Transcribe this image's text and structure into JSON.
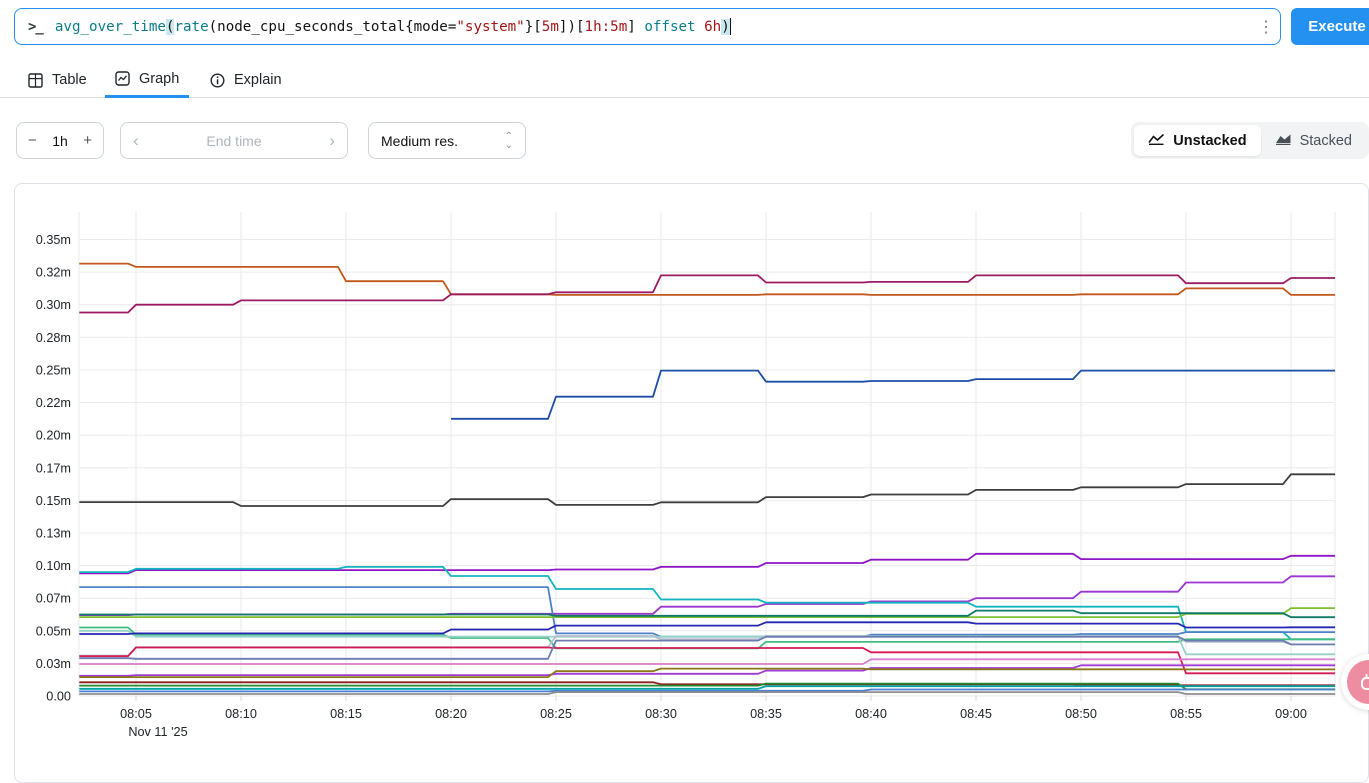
{
  "query_bar": {
    "prompt": ">_",
    "kebab": "⋮",
    "execute_label": "Execute",
    "accent_color": "#2490ef",
    "segments": [
      {
        "text": "avg_over_time",
        "cls": "fn"
      },
      {
        "text": "(",
        "cls": "paren-match"
      },
      {
        "text": "rate",
        "cls": "fn"
      },
      {
        "text": "(",
        "cls": "plain"
      },
      {
        "text": "node_cpu_seconds_total",
        "cls": "metric"
      },
      {
        "text": "{",
        "cls": "plain"
      },
      {
        "text": "mode",
        "cls": "plain"
      },
      {
        "text": "=",
        "cls": "plain"
      },
      {
        "text": "\"system\"",
        "cls": "string"
      },
      {
        "text": "}",
        "cls": "plain"
      },
      {
        "text": "[",
        "cls": "plain"
      },
      {
        "text": "5m",
        "cls": "duration"
      },
      {
        "text": "]",
        "cls": "plain"
      },
      {
        "text": ")",
        "cls": "plain"
      },
      {
        "text": "[",
        "cls": "plain"
      },
      {
        "text": "1h:5m",
        "cls": "duration"
      },
      {
        "text": "]",
        "cls": "plain"
      },
      {
        "text": " ",
        "cls": "plain"
      },
      {
        "text": "offset",
        "cls": "keyword"
      },
      {
        "text": " ",
        "cls": "plain"
      },
      {
        "text": "6h",
        "cls": "duration"
      },
      {
        "text": ")",
        "cls": "paren-match"
      }
    ]
  },
  "tabs": [
    {
      "label": "Table",
      "active": false
    },
    {
      "label": "Graph",
      "active": true
    },
    {
      "label": "Explain",
      "active": false
    }
  ],
  "controls": {
    "duration": {
      "minus": "−",
      "value": "1h",
      "plus": "+"
    },
    "end_time": {
      "placeholder": "End time",
      "prev": "‹",
      "next": "›"
    },
    "resolution": {
      "value": "Medium res."
    },
    "stack_toggle": [
      {
        "label": "Unstacked",
        "active": true
      },
      {
        "label": "Stacked",
        "active": false
      }
    ]
  },
  "floating_button": {
    "color": "#ee8ca2"
  },
  "chart_data": {
    "type": "line",
    "grid": true,
    "legend": "none",
    "ylim": [
      0,
      0.37
    ],
    "y_unit": "m",
    "date_label": "Nov 11 '25",
    "y_ticks": [
      {
        "v": 0.35,
        "label": "0.35m"
      },
      {
        "v": 0.325,
        "label": "0.32m"
      },
      {
        "v": 0.3,
        "label": "0.30m"
      },
      {
        "v": 0.275,
        "label": "0.28m"
      },
      {
        "v": 0.25,
        "label": "0.25m"
      },
      {
        "v": 0.225,
        "label": "0.22m"
      },
      {
        "v": 0.2,
        "label": "0.20m"
      },
      {
        "v": 0.175,
        "label": "0.17m"
      },
      {
        "v": 0.15,
        "label": "0.15m"
      },
      {
        "v": 0.125,
        "label": "0.13m"
      },
      {
        "v": 0.1,
        "label": "0.10m"
      },
      {
        "v": 0.075,
        "label": "0.07m"
      },
      {
        "v": 0.05,
        "label": "0.05m"
      },
      {
        "v": 0.025,
        "label": "0.03m"
      },
      {
        "v": 0.0,
        "label": "0.00"
      }
    ],
    "x_ticks": [
      "08:05",
      "08:10",
      "08:15",
      "08:20",
      "08:25",
      "08:30",
      "08:35",
      "08:40",
      "08:45",
      "08:50",
      "08:55",
      "09:00"
    ],
    "step_minutes": [
      482.3,
      485,
      490,
      495,
      500,
      505,
      510,
      515,
      520,
      525,
      530,
      535,
      540,
      542.1
    ],
    "series": [
      {
        "name": "dark-orange",
        "color": "#c2571a",
        "values": [
          0.3315,
          0.329,
          0.329,
          0.318,
          0.308,
          0.3075,
          0.3075,
          0.308,
          0.3075,
          0.3075,
          0.308,
          0.3125,
          0.3075,
          0.3075
        ]
      },
      {
        "name": "dark-magenta",
        "color": "#9c1a62",
        "values": [
          0.294,
          0.3,
          0.3033,
          0.3033,
          0.308,
          0.3095,
          0.3225,
          0.317,
          0.3175,
          0.3225,
          0.3225,
          0.3165,
          0.3205,
          0.3205
        ]
      },
      {
        "name": "navy-blue",
        "color": "#1d4ea6",
        "values": [
          null,
          null,
          null,
          null,
          0.2125,
          0.2295,
          0.2495,
          0.241,
          0.2415,
          0.243,
          0.2495,
          0.2495,
          0.2495,
          0.2495
        ]
      },
      {
        "name": "near-black",
        "color": "#3d3d3d",
        "values": [
          0.1487,
          0.1487,
          0.1457,
          0.1457,
          0.151,
          0.1465,
          0.1485,
          0.1525,
          0.1545,
          0.158,
          0.16,
          0.1625,
          0.17,
          0.17
        ]
      },
      {
        "name": "violet",
        "color": "#8e14c6",
        "values": [
          0.094,
          0.0965,
          0.0965,
          0.0965,
          0.0965,
          0.097,
          0.099,
          0.102,
          0.1045,
          0.109,
          0.105,
          0.105,
          0.1075,
          0.1075
        ]
      },
      {
        "name": "purple",
        "color": "#9a35cf",
        "values": [
          0.062,
          0.0625,
          0.0625,
          0.0625,
          0.063,
          0.063,
          0.0685,
          0.0705,
          0.0725,
          0.075,
          0.08,
          0.087,
          0.0918,
          0.0918
        ]
      },
      {
        "name": "cyan",
        "color": "#12b5bf",
        "values": [
          0.095,
          0.0975,
          0.0975,
          0.099,
          0.092,
          0.082,
          0.074,
          0.0715,
          0.0715,
          0.0685,
          0.0685,
          0.049,
          0.0435,
          0.0435
        ]
      },
      {
        "name": "steel-blue",
        "color": "#4f81cb",
        "values": [
          0.0835,
          0.0835,
          0.0835,
          0.0835,
          0.0835,
          0.048,
          0.0455,
          0.0455,
          0.047,
          0.047,
          0.0475,
          0.049,
          0.049,
          0.049
        ]
      },
      {
        "name": "sea-green",
        "color": "#41bd80",
        "values": [
          0.0525,
          0.047,
          0.047,
          0.047,
          0.0445,
          0.0365,
          0.0365,
          0.0415,
          0.0415,
          0.0415,
          0.0415,
          0.0435,
          0.0435,
          0.0435
        ]
      },
      {
        "name": "pale-teal",
        "color": "#96d1c6",
        "values": [
          0.05,
          0.0455,
          0.0455,
          0.0455,
          0.0455,
          0.0455,
          0.0455,
          0.046,
          0.046,
          0.046,
          0.046,
          0.032,
          0.032,
          0.032
        ]
      },
      {
        "name": "dark-blue",
        "color": "#2525b5",
        "values": [
          0.0475,
          0.048,
          0.048,
          0.048,
          0.051,
          0.054,
          0.054,
          0.0565,
          0.0565,
          0.0555,
          0.0555,
          0.0525,
          0.0527,
          0.0527
        ]
      },
      {
        "name": "silver",
        "color": "#b4bdcf",
        "values": [
          0.031,
          0.0375,
          0.0375,
          0.0375,
          0.0375,
          0.046,
          0.0435,
          0.0455,
          0.0455,
          0.0455,
          0.0455,
          0.0415,
          0.0396,
          0.0396
        ]
      },
      {
        "name": "crimson",
        "color": "#d61a55",
        "values": [
          0.0305,
          0.0372,
          0.0372,
          0.0372,
          0.0372,
          0.0368,
          0.0368,
          0.0368,
          0.0335,
          0.0335,
          0.0335,
          0.0174,
          0.0174,
          0.0174
        ]
      },
      {
        "name": "slate",
        "color": "#6d7cb0",
        "values": [
          0.029,
          0.0285,
          0.0285,
          0.0285,
          0.0285,
          0.0425,
          0.0425,
          0.0455,
          0.0455,
          0.0455,
          0.0455,
          0.0425,
          0.0396,
          0.0396
        ]
      },
      {
        "name": "orchid",
        "color": "#a23bd6",
        "values": [
          0.0155,
          0.016,
          0.016,
          0.016,
          0.016,
          0.017,
          0.017,
          0.0195,
          0.0215,
          0.0215,
          0.0235,
          0.0235,
          0.0235,
          0.0235
        ]
      },
      {
        "name": "olive",
        "color": "#8a7716",
        "values": [
          0.0145,
          0.0145,
          0.0145,
          0.0145,
          0.0145,
          0.019,
          0.021,
          0.021,
          0.0205,
          0.0205,
          0.0205,
          0.0204,
          0.0204,
          0.0204
        ]
      },
      {
        "name": "dark-red",
        "color": "#8f1d1d",
        "values": [
          0.0105,
          0.0105,
          0.0105,
          0.0105,
          0.0105,
          0.0105,
          0.009,
          0.009,
          0.009,
          0.009,
          0.0082,
          0.0082,
          0.0082,
          0.0082
        ]
      },
      {
        "name": "forest-green",
        "color": "#208a2d",
        "values": [
          0.008,
          0.008,
          0.008,
          0.008,
          0.008,
          0.008,
          0.008,
          0.0095,
          0.0095,
          0.0095,
          0.0095,
          0.0051,
          0.0051,
          0.0051
        ]
      },
      {
        "name": "teal",
        "color": "#00a3a3",
        "values": [
          0.0055,
          0.0055,
          0.0055,
          0.0055,
          0.0055,
          0.0055,
          0.0055,
          0.0075,
          0.0075,
          0.0075,
          0.0075,
          0.0075,
          0.0075,
          0.0075
        ]
      },
      {
        "name": "cornflower",
        "color": "#4a7fd4",
        "values": [
          0.0035,
          0.0035,
          0.0035,
          0.0035,
          0.0035,
          0.004,
          0.004,
          0.004,
          0.005,
          0.005,
          0.005,
          0.005,
          0.005,
          0.005
        ]
      },
      {
        "name": "gray",
        "color": "#8e8e8e",
        "values": [
          0.0015,
          0.0015,
          0.0015,
          0.0015,
          0.0015,
          0.003,
          0.003,
          0.003,
          0.003,
          0.003,
          0.003,
          0.0015,
          0.0015,
          0.0015
        ]
      },
      {
        "name": "pink",
        "color": "#d77fca",
        "values": [
          0.0245,
          0.0245,
          0.0245,
          0.0245,
          0.0245,
          0.0245,
          0.0245,
          0.0245,
          0.0281,
          0.0281,
          0.0281,
          0.0281,
          0.0281,
          0.0281
        ]
      },
      {
        "name": "lime-green",
        "color": "#7cbf2e",
        "values": [
          0.0605,
          0.0605,
          0.0605,
          0.0605,
          0.0605,
          0.0605,
          0.0605,
          0.0605,
          0.0605,
          0.0605,
          0.0605,
          0.063,
          0.0674,
          0.0674
        ]
      },
      {
        "name": "dark-teal",
        "color": "#0f7868",
        "values": [
          0.0625,
          0.0625,
          0.0625,
          0.0625,
          0.0625,
          0.0615,
          0.0615,
          0.0615,
          0.0615,
          0.0655,
          0.0635,
          0.0635,
          0.0604,
          0.0604
        ]
      }
    ]
  }
}
